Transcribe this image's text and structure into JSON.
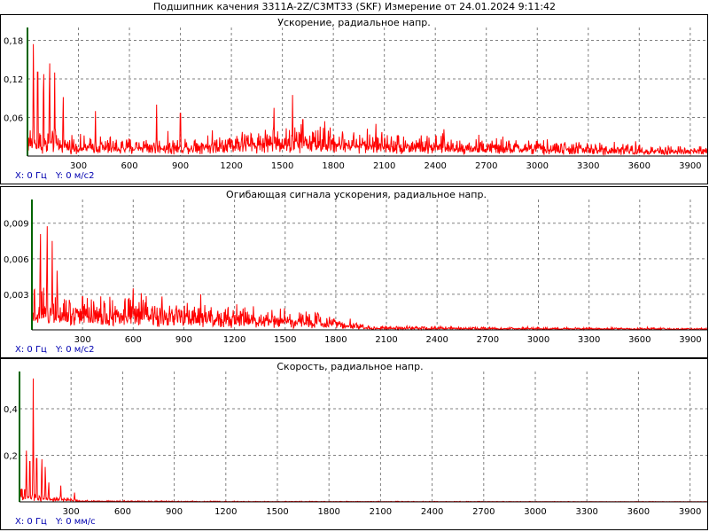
{
  "window": {
    "title": "Подшипник качения 3311A-2Z/C3MT33 (SKF)  Измерение от 24.01.2024 9:11:42"
  },
  "panels": [
    {
      "readout_x": "X: 0 Гц",
      "readout_y": "Y: 0 м/с2"
    },
    {
      "readout_x": "X: 0 Гц",
      "readout_y": "Y: 0 м/с2"
    },
    {
      "readout_x": "X: 0 Гц",
      "readout_y": "Y: 0 мм/с"
    }
  ],
  "colors": {
    "series": "#ff0000",
    "grid": "#808080",
    "origin": "#006400",
    "readout": "#0000b0"
  },
  "chart_data": [
    {
      "type": "line",
      "title": "Ускорение, радиальное напр.",
      "xlim": [
        0,
        4000
      ],
      "ylim": [
        0,
        0.2
      ],
      "x_ticks": [
        300,
        600,
        900,
        1200,
        1500,
        1800,
        2100,
        2400,
        2700,
        3000,
        3300,
        3600,
        3900
      ],
      "y_ticks": [
        0.06,
        0.12,
        0.18
      ],
      "y_tick_labels": [
        "0,06",
        "0,12",
        "0,18"
      ],
      "grid": true,
      "profile": [
        [
          0,
          0.03
        ],
        [
          300,
          0.02
        ],
        [
          900,
          0.02
        ],
        [
          1400,
          0.03
        ],
        [
          1700,
          0.03
        ],
        [
          2400,
          0.02
        ],
        [
          3200,
          0.015
        ],
        [
          4000,
          0.01
        ]
      ],
      "peaks": [
        [
          35,
          0.19
        ],
        [
          60,
          0.196
        ],
        [
          95,
          0.17
        ],
        [
          130,
          0.173
        ],
        [
          160,
          0.13
        ],
        [
          210,
          0.11
        ],
        [
          400,
          0.07
        ],
        [
          760,
          0.08
        ],
        [
          900,
          0.1
        ],
        [
          1450,
          0.09
        ],
        [
          1560,
          0.095
        ],
        [
          1620,
          0.085
        ],
        [
          1750,
          0.065
        ],
        [
          2050,
          0.06
        ],
        [
          2450,
          0.05
        ]
      ]
    },
    {
      "type": "line",
      "title": "Огибающая сигнала ускорения, радиальное напр.",
      "xlim": [
        0,
        4000
      ],
      "ylim": [
        0,
        0.011
      ],
      "x_ticks": [
        300,
        600,
        900,
        1200,
        1500,
        1800,
        2100,
        2400,
        2700,
        3000,
        3300,
        3600,
        3900
      ],
      "y_ticks": [
        0.003,
        0.006,
        0.009
      ],
      "y_tick_labels": [
        "0,003",
        "0,006",
        "0,009"
      ],
      "grid": true,
      "profile": [
        [
          0,
          0.0025
        ],
        [
          300,
          0.002
        ],
        [
          900,
          0.0015
        ],
        [
          1500,
          0.0012
        ],
        [
          1800,
          0.0008
        ],
        [
          2000,
          0.0002
        ],
        [
          4000,
          0.0001
        ]
      ],
      "peaks": [
        [
          50,
          0.0097
        ],
        [
          90,
          0.0105
        ],
        [
          120,
          0.0075
        ],
        [
          150,
          0.006
        ],
        [
          300,
          0.0042
        ],
        [
          600,
          0.0035
        ],
        [
          1000,
          0.003
        ]
      ]
    },
    {
      "type": "line",
      "title": "Скорость, радиальное напр.",
      "xlim": [
        0,
        4000
      ],
      "ylim": [
        0,
        0.56
      ],
      "x_ticks": [
        300,
        600,
        900,
        1200,
        1500,
        1800,
        2100,
        2400,
        2700,
        3000,
        3300,
        3600,
        3900
      ],
      "y_ticks": [
        0.2,
        0.4
      ],
      "y_tick_labels": [
        "0,2",
        "0,4"
      ],
      "grid": true,
      "profile": [
        [
          0,
          0.04
        ],
        [
          200,
          0.015
        ],
        [
          400,
          0.004
        ],
        [
          700,
          0.003
        ],
        [
          1200,
          0.002
        ],
        [
          4000,
          0.001
        ]
      ],
      "peaks": [
        [
          40,
          0.22
        ],
        [
          60,
          0.26
        ],
        [
          80,
          0.53
        ],
        [
          100,
          0.28
        ],
        [
          130,
          0.22
        ],
        [
          150,
          0.18
        ],
        [
          170,
          0.1
        ],
        [
          240,
          0.07
        ],
        [
          320,
          0.04
        ]
      ]
    }
  ]
}
